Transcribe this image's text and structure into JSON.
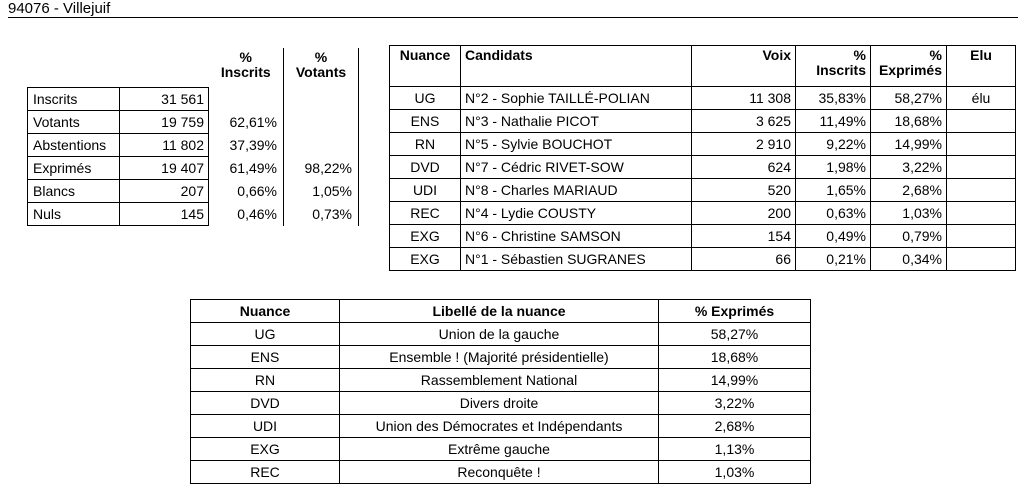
{
  "title": "94076 - Villejuif",
  "stats": {
    "headers": {
      "inscrits": [
        "%",
        "Inscrits"
      ],
      "votants": [
        "%",
        "Votants"
      ]
    },
    "rows": [
      {
        "label": "Inscrits",
        "value": "31 561",
        "pct_inscrits": "",
        "pct_votants": ""
      },
      {
        "label": "Votants",
        "value": "19 759",
        "pct_inscrits": "62,61%",
        "pct_votants": ""
      },
      {
        "label": "Abstentions",
        "value": "11 802",
        "pct_inscrits": "37,39%",
        "pct_votants": ""
      },
      {
        "label": "Exprimés",
        "value": "19 407",
        "pct_inscrits": "61,49%",
        "pct_votants": "98,22%"
      },
      {
        "label": "Blancs",
        "value": "207",
        "pct_inscrits": "0,66%",
        "pct_votants": "1,05%"
      },
      {
        "label": "Nuls",
        "value": "145",
        "pct_inscrits": "0,46%",
        "pct_votants": "0,73%"
      }
    ]
  },
  "candidates": {
    "headers": {
      "nuance": "Nuance",
      "candidats": "Candidats",
      "voix": "Voix",
      "inscrits": [
        "%",
        "Inscrits"
      ],
      "exprimes": [
        "%",
        "Exprimés"
      ],
      "elu": "Elu"
    },
    "rows": [
      {
        "nuance": "UG",
        "name": "N°2 - Sophie TAILLÉ-POLIAN",
        "voix": "11 308",
        "pct_inscrits": "35,83%",
        "pct_exprimes": "58,27%",
        "elu": "élu"
      },
      {
        "nuance": "ENS",
        "name": "N°3 - Nathalie PICOT",
        "voix": "3 625",
        "pct_inscrits": "11,49%",
        "pct_exprimes": "18,68%",
        "elu": ""
      },
      {
        "nuance": "RN",
        "name": "N°5 - Sylvie BOUCHOT",
        "voix": "2 910",
        "pct_inscrits": "9,22%",
        "pct_exprimes": "14,99%",
        "elu": ""
      },
      {
        "nuance": "DVD",
        "name": "N°7 - Cédric RIVET-SOW",
        "voix": "624",
        "pct_inscrits": "1,98%",
        "pct_exprimes": "3,22%",
        "elu": ""
      },
      {
        "nuance": "UDI",
        "name": "N°8 - Charles MARIAUD",
        "voix": "520",
        "pct_inscrits": "1,65%",
        "pct_exprimes": "2,68%",
        "elu": ""
      },
      {
        "nuance": "REC",
        "name": "N°4 - Lydie COUSTY",
        "voix": "200",
        "pct_inscrits": "0,63%",
        "pct_exprimes": "1,03%",
        "elu": ""
      },
      {
        "nuance": "EXG",
        "name": "N°6 - Christine SAMSON",
        "voix": "154",
        "pct_inscrits": "0,49%",
        "pct_exprimes": "0,79%",
        "elu": ""
      },
      {
        "nuance": "EXG",
        "name": "N°1 - Sébastien SUGRANES",
        "voix": "66",
        "pct_inscrits": "0,21%",
        "pct_exprimes": "0,34%",
        "elu": ""
      }
    ]
  },
  "nuances": {
    "headers": {
      "nuance": "Nuance",
      "libelle": "Libellé de la nuance",
      "exprimes": "% Exprimés"
    },
    "rows": [
      {
        "nuance": "UG",
        "libelle": "Union de la gauche",
        "exprimes": "58,27%"
      },
      {
        "nuance": "ENS",
        "libelle": "Ensemble ! (Majorité présidentielle)",
        "exprimes": "18,68%"
      },
      {
        "nuance": "RN",
        "libelle": "Rassemblement National",
        "exprimes": "14,99%"
      },
      {
        "nuance": "DVD",
        "libelle": "Divers droite",
        "exprimes": "3,22%"
      },
      {
        "nuance": "UDI",
        "libelle": "Union des Démocrates et Indépendants",
        "exprimes": "2,68%"
      },
      {
        "nuance": "EXG",
        "libelle": "Extrême gauche",
        "exprimes": "1,13%"
      },
      {
        "nuance": "REC",
        "libelle": "Reconquête !",
        "exprimes": "1,03%"
      }
    ]
  }
}
